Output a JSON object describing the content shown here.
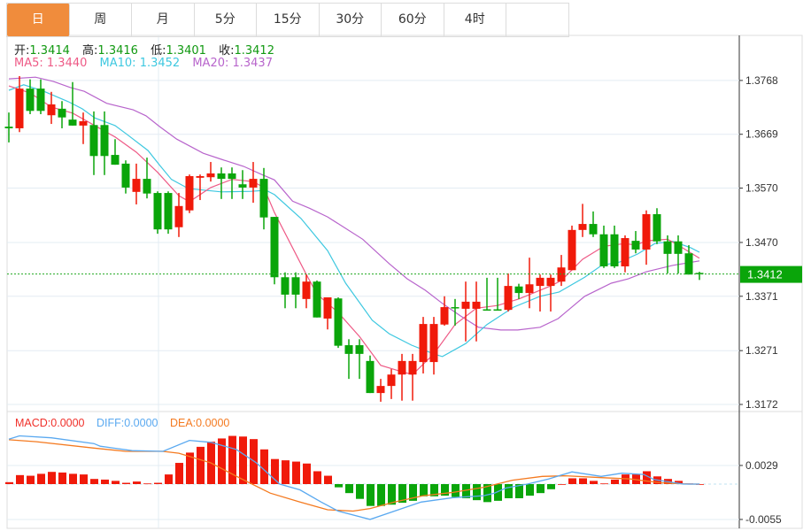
{
  "tabs": [
    "日",
    "周",
    "月",
    "5分",
    "15分",
    "30分",
    "60分",
    "4时",
    ""
  ],
  "active_tab": 0,
  "ohlc_legend": {
    "open_label": "开:",
    "open": "1.3414",
    "high_label": "高:",
    "high": "1.3416",
    "low_label": "低:",
    "low": "1.3401",
    "close_label": "收:",
    "close": "1.3412"
  },
  "ma_legend": {
    "ma5": "MA5: 1.3440",
    "ma10": "MA10: 1.3452",
    "ma20": "MA20: 1.3437"
  },
  "macd_legend": {
    "macd": "MACD:0.0000",
    "diff": "DIFF:0.0000",
    "dea": "DEA:0.0000"
  },
  "colors": {
    "up": "#f01a0a",
    "down": "#0aa50a",
    "ma5": "#ee5a86",
    "ma10": "#3ec8e0",
    "ma20": "#b865cc",
    "diff": "#5aa9f0",
    "dea": "#f47a20",
    "accent_tab": "#f08c3c"
  },
  "chart_data": [
    {
      "type": "candlestick",
      "title": "",
      "price_ticks": [
        "1.3768",
        "1.3669",
        "1.3570",
        "1.3470",
        "1.3371",
        "1.3271",
        "1.3172"
      ],
      "ylim": [
        1.315,
        1.3806
      ],
      "current_price": "1.3412",
      "candles": [
        [
          1.3683,
          1.3709,
          1.3654,
          1.368
        ],
        [
          1.368,
          1.3776,
          1.3673,
          1.3753
        ],
        [
          1.3753,
          1.377,
          1.3706,
          1.3712
        ],
        [
          1.3753,
          1.377,
          1.3706,
          1.3712
        ],
        [
          1.3704,
          1.3747,
          1.3688,
          1.3724
        ],
        [
          1.3716,
          1.373,
          1.368,
          1.37
        ],
        [
          1.3696,
          1.3765,
          1.3685,
          1.3685
        ],
        [
          1.3685,
          1.3709,
          1.3651,
          1.3693
        ],
        [
          1.3686,
          1.3711,
          1.3594,
          1.3629
        ],
        [
          1.3686,
          1.3711,
          1.3594,
          1.3629
        ],
        [
          1.3631,
          1.366,
          1.3613,
          1.3613
        ],
        [
          1.3615,
          1.3621,
          1.356,
          1.3571
        ],
        [
          1.3563,
          1.3615,
          1.354,
          1.3587
        ],
        [
          1.3587,
          1.3626,
          1.3551,
          1.356
        ],
        [
          1.3561,
          1.3564,
          1.3486,
          1.3494
        ],
        [
          1.3561,
          1.3564,
          1.3486,
          1.3494
        ],
        [
          1.3498,
          1.3561,
          1.348,
          1.3537
        ],
        [
          1.3529,
          1.3595,
          1.3524,
          1.3592
        ],
        [
          1.3589,
          1.3595,
          1.3548,
          1.3592
        ],
        [
          1.359,
          1.3618,
          1.3582,
          1.3597
        ],
        [
          1.3597,
          1.3608,
          1.355,
          1.3587
        ],
        [
          1.3597,
          1.3608,
          1.355,
          1.3587
        ],
        [
          1.3577,
          1.3603,
          1.355,
          1.3571
        ],
        [
          1.3571,
          1.3618,
          1.3543,
          1.3587
        ],
        [
          1.3587,
          1.3607,
          1.3494,
          1.3516
        ],
        [
          1.3517,
          1.3517,
          1.3393,
          1.3406
        ],
        [
          1.3406,
          1.3415,
          1.3349,
          1.3374
        ],
        [
          1.3406,
          1.3415,
          1.3349,
          1.3374
        ],
        [
          1.3366,
          1.3411,
          1.3349,
          1.3398
        ],
        [
          1.3398,
          1.34,
          1.3332,
          1.3332
        ],
        [
          1.333,
          1.3369,
          1.331,
          1.3369
        ],
        [
          1.3367,
          1.3369,
          1.3276,
          1.328
        ],
        [
          1.3281,
          1.3292,
          1.3219,
          1.3265
        ],
        [
          1.3281,
          1.3292,
          1.3219,
          1.3265
        ],
        [
          1.3252,
          1.3262,
          1.3193,
          1.3193
        ],
        [
          1.3193,
          1.3219,
          1.3177,
          1.3206
        ],
        [
          1.3206,
          1.3237,
          1.3182,
          1.3227
        ],
        [
          1.3227,
          1.3265,
          1.3179,
          1.3252
        ],
        [
          1.3227,
          1.3265,
          1.3179,
          1.3252
        ],
        [
          1.325,
          1.3333,
          1.3229,
          1.332
        ],
        [
          1.325,
          1.3333,
          1.3227,
          1.332
        ],
        [
          1.3319,
          1.3371,
          1.3317,
          1.3351
        ],
        [
          1.3351,
          1.3366,
          1.3317,
          1.3349
        ],
        [
          1.3348,
          1.3398,
          1.3288,
          1.3361
        ],
        [
          1.3348,
          1.3398,
          1.3288,
          1.3361
        ],
        [
          1.3347,
          1.3405,
          1.3345,
          1.3346
        ],
        [
          1.3347,
          1.3405,
          1.3345,
          1.3346
        ],
        [
          1.3346,
          1.3413,
          1.3343,
          1.339
        ],
        [
          1.3389,
          1.3394,
          1.3366,
          1.3377
        ],
        [
          1.3377,
          1.3442,
          1.3349,
          1.3393
        ],
        [
          1.339,
          1.3411,
          1.3343,
          1.3405
        ],
        [
          1.339,
          1.3411,
          1.3343,
          1.3405
        ],
        [
          1.3398,
          1.3447,
          1.339,
          1.3424
        ],
        [
          1.3419,
          1.3501,
          1.3419,
          1.3493
        ],
        [
          1.3493,
          1.3541,
          1.348,
          1.3504
        ],
        [
          1.3504,
          1.3527,
          1.348,
          1.3485
        ],
        [
          1.3485,
          1.3501,
          1.3423,
          1.3426
        ],
        [
          1.3485,
          1.3501,
          1.3423,
          1.3426
        ],
        [
          1.3426,
          1.3483,
          1.3415,
          1.3478
        ],
        [
          1.3473,
          1.3491,
          1.345,
          1.3457
        ],
        [
          1.3457,
          1.3529,
          1.3429,
          1.3522
        ],
        [
          1.3522,
          1.3533,
          1.3467,
          1.3472
        ],
        [
          1.3472,
          1.3483,
          1.3413,
          1.3449
        ],
        [
          1.3472,
          1.3483,
          1.3413,
          1.3449
        ],
        [
          1.345,
          1.3465,
          1.3411,
          1.3411
        ],
        [
          1.3414,
          1.3416,
          1.3401,
          1.3412
        ]
      ],
      "ma5": [
        [
          0,
          1.3758
        ],
        [
          2,
          1.3745
        ],
        [
          4,
          1.3719
        ],
        [
          6,
          1.3708
        ],
        [
          8,
          1.3686
        ],
        [
          10,
          1.3664
        ],
        [
          12,
          1.3636
        ],
        [
          14,
          1.3599
        ],
        [
          16,
          1.3556
        ],
        [
          17,
          1.3545
        ],
        [
          19,
          1.3571
        ],
        [
          21,
          1.3586
        ],
        [
          23,
          1.3582
        ],
        [
          24,
          1.3571
        ],
        [
          25,
          1.3525
        ],
        [
          28,
          1.3411
        ],
        [
          29,
          1.3375
        ],
        [
          31,
          1.3341
        ],
        [
          33,
          1.3297
        ],
        [
          35,
          1.3244
        ],
        [
          37,
          1.3232
        ],
        [
          38,
          1.3227
        ],
        [
          40,
          1.3265
        ],
        [
          42,
          1.3319
        ],
        [
          44,
          1.3349
        ],
        [
          46,
          1.3354
        ],
        [
          48,
          1.3366
        ],
        [
          51,
          1.339
        ],
        [
          52,
          1.34
        ],
        [
          54,
          1.3439
        ],
        [
          56,
          1.3463
        ],
        [
          58,
          1.3468
        ],
        [
          59,
          1.3465
        ],
        [
          60,
          1.3473
        ],
        [
          62,
          1.3476
        ],
        [
          63,
          1.3465
        ],
        [
          65,
          1.3441
        ]
      ],
      "ma10": [
        [
          0,
          1.375
        ],
        [
          1.4,
          1.376
        ],
        [
          3.3,
          1.3748
        ],
        [
          5.6,
          1.3729
        ],
        [
          6.9,
          1.3716
        ],
        [
          8.1,
          1.3699
        ],
        [
          10,
          1.3685
        ],
        [
          11.1,
          1.3669
        ],
        [
          13.1,
          1.3639
        ],
        [
          14.2,
          1.3612
        ],
        [
          15.3,
          1.3586
        ],
        [
          16.9,
          1.3569
        ],
        [
          20,
          1.3563
        ],
        [
          22.8,
          1.3564
        ],
        [
          24.2,
          1.3566
        ],
        [
          25,
          1.3558
        ],
        [
          27.5,
          1.3514
        ],
        [
          30,
          1.3455
        ],
        [
          31.7,
          1.3395
        ],
        [
          34.2,
          1.3327
        ],
        [
          35.8,
          1.3302
        ],
        [
          37.9,
          1.3281
        ],
        [
          40,
          1.3265
        ],
        [
          40.8,
          1.326
        ],
        [
          43,
          1.3284
        ],
        [
          45,
          1.3319
        ],
        [
          47.5,
          1.3351
        ],
        [
          50,
          1.3371
        ],
        [
          51.8,
          1.3379
        ],
        [
          54.2,
          1.3406
        ],
        [
          55.8,
          1.3428
        ],
        [
          57.5,
          1.3434
        ],
        [
          59.2,
          1.3449
        ],
        [
          60.8,
          1.3468
        ],
        [
          62.5,
          1.3472
        ],
        [
          64.2,
          1.346
        ],
        [
          65,
          1.3452
        ]
      ],
      "ma20": [
        [
          0,
          1.3771
        ],
        [
          2.5,
          1.3774
        ],
        [
          4.2,
          1.3766
        ],
        [
          5.8,
          1.3755
        ],
        [
          7.1,
          1.3748
        ],
        [
          9.2,
          1.3726
        ],
        [
          11.7,
          1.3714
        ],
        [
          12.9,
          1.3703
        ],
        [
          14.2,
          1.3683
        ],
        [
          15.8,
          1.366
        ],
        [
          18.3,
          1.3634
        ],
        [
          20,
          1.3623
        ],
        [
          22.1,
          1.361
        ],
        [
          23.8,
          1.3595
        ],
        [
          25,
          1.3585
        ],
        [
          26.7,
          1.3546
        ],
        [
          28.3,
          1.3533
        ],
        [
          30,
          1.3517
        ],
        [
          33.3,
          1.3476
        ],
        [
          35.8,
          1.3431
        ],
        [
          37.5,
          1.3403
        ],
        [
          39.2,
          1.3382
        ],
        [
          40.8,
          1.3358
        ],
        [
          42.5,
          1.3335
        ],
        [
          44.2,
          1.3314
        ],
        [
          46.3,
          1.3309
        ],
        [
          47.9,
          1.3309
        ],
        [
          50,
          1.3314
        ],
        [
          51.7,
          1.333
        ],
        [
          54.2,
          1.3371
        ],
        [
          56.7,
          1.3395
        ],
        [
          58.3,
          1.3403
        ],
        [
          60,
          1.3416
        ],
        [
          62.5,
          1.3428
        ],
        [
          65,
          1.3436
        ]
      ]
    },
    {
      "type": "bar+line",
      "title": "MACD",
      "ticks": [
        "0.0029",
        "-0.0055"
      ],
      "ylim": [
        -0.006,
        0.007
      ],
      "histogram": [
        0.0003,
        0.0014,
        0.0013,
        0.0016,
        0.0019,
        0.0018,
        0.0016,
        0.0015,
        0.0008,
        0.0007,
        0.0005,
        0.0002,
        0.0004,
        0.0001,
        0.0002,
        0.0015,
        0.0033,
        0.0049,
        0.0058,
        0.0066,
        0.0071,
        0.0075,
        0.0074,
        0.007,
        0.0054,
        0.0039,
        0.0037,
        0.0035,
        0.0032,
        0.002,
        0.0013,
        -0.0005,
        -0.0014,
        -0.0023,
        -0.0034,
        -0.0034,
        -0.0032,
        -0.0029,
        -0.0026,
        -0.0019,
        -0.0019,
        -0.0018,
        -0.002,
        -0.0022,
        -0.0025,
        -0.0028,
        -0.0026,
        -0.0022,
        -0.0022,
        -0.0018,
        -0.0014,
        -0.0008,
        0.0,
        0.0009,
        0.0009,
        0.0005,
        0.0001,
        0.0007,
        0.0015,
        0.0015,
        0.002,
        0.0012,
        0.0008,
        0.0005,
        0.0001,
        0.0
      ],
      "diff": [
        [
          0,
          0.007
        ],
        [
          1,
          0.0075
        ],
        [
          4,
          0.0072
        ],
        [
          8,
          0.0063
        ],
        [
          8.6,
          0.0059
        ],
        [
          11.6,
          0.0052
        ],
        [
          14.5,
          0.0051
        ],
        [
          17,
          0.0068
        ],
        [
          19,
          0.0065
        ],
        [
          21.4,
          0.0054
        ],
        [
          23.3,
          0.0033
        ],
        [
          25.5,
          0.0
        ],
        [
          27.4,
          -0.0009
        ],
        [
          29.4,
          -0.0028
        ],
        [
          31,
          -0.0042
        ],
        [
          34,
          -0.0055
        ],
        [
          38.8,
          -0.0028
        ],
        [
          41.8,
          -0.0021
        ],
        [
          44.7,
          -0.0018
        ],
        [
          45.7,
          -0.0014
        ],
        [
          46.8,
          -0.0006
        ],
        [
          48.8,
          0.0
        ],
        [
          50.8,
          0.0008
        ],
        [
          53,
          0.0019
        ],
        [
          55.75,
          0.0012
        ],
        [
          57.7,
          0.0017
        ],
        [
          59.75,
          0.0015
        ],
        [
          60.75,
          0.0007
        ],
        [
          63.5,
          0.0
        ],
        [
          65,
          0.0
        ]
      ],
      "dea": [
        [
          0,
          0.0069
        ],
        [
          2.6,
          0.0066
        ],
        [
          8,
          0.0056
        ],
        [
          11,
          0.0051
        ],
        [
          14.5,
          0.0051
        ],
        [
          16,
          0.0048
        ],
        [
          19,
          0.0033
        ],
        [
          21.8,
          0.0009
        ],
        [
          24.6,
          -0.0014
        ],
        [
          27.4,
          -0.0028
        ],
        [
          30,
          -0.004
        ],
        [
          32.4,
          -0.0042
        ],
        [
          34,
          -0.0038
        ],
        [
          36.3,
          -0.0028
        ],
        [
          39,
          -0.0018
        ],
        [
          41.8,
          -0.0013
        ],
        [
          44.7,
          -0.0005
        ],
        [
          47.4,
          0.0006
        ],
        [
          50.2,
          0.0012
        ],
        [
          52.4,
          0.0013
        ],
        [
          55.75,
          0.001
        ],
        [
          58.5,
          0.0008
        ],
        [
          61.3,
          0.0002
        ],
        [
          64,
          0.0
        ],
        [
          65,
          0.0
        ]
      ]
    }
  ]
}
